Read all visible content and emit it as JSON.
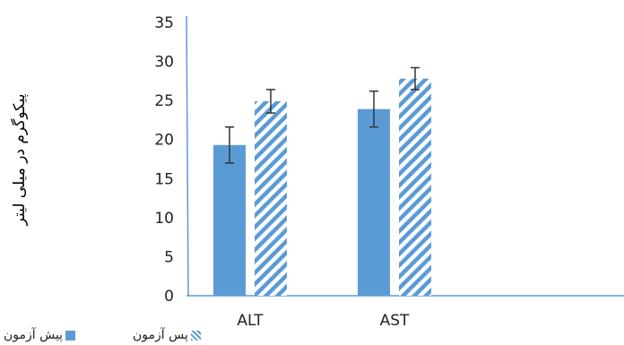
{
  "chart_data": {
    "type": "bar",
    "categories": [
      "ALT",
      "AST"
    ],
    "series": [
      {
        "name": "پیش آزمون",
        "values": [
          19.3,
          23.9
        ],
        "errors": [
          2.3,
          2.3
        ],
        "color": "#5b9bd5",
        "pattern": "solid"
      },
      {
        "name": "پس آزمون",
        "values": [
          24.9,
          27.8
        ],
        "errors": [
          1.5,
          1.4
        ],
        "color": "#5b9bd5",
        "pattern": "diagonal-stripes"
      }
    ],
    "ylabel": "پیکوگرم در میلی لیتر",
    "ylim": [
      0,
      35
    ],
    "yticks": [
      "0",
      "5",
      "10",
      "15",
      "20",
      "25",
      "30",
      "35"
    ],
    "grid": false,
    "legend_position": "bottom-left"
  }
}
